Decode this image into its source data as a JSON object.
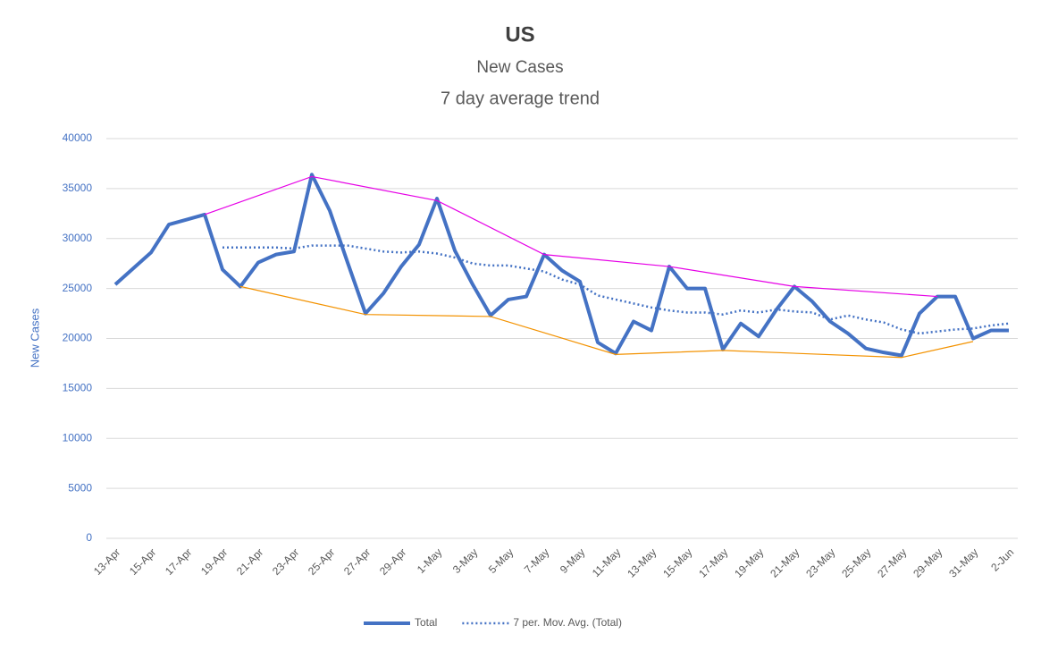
{
  "chart_data": {
    "type": "line",
    "title": "US",
    "subtitle": "New Cases",
    "subtitle2": "7 day average trend",
    "y_label": "New Cases",
    "categories": [
      "13-Apr",
      null,
      "15-Apr",
      null,
      "17-Apr",
      null,
      "19-Apr",
      null,
      "21-Apr",
      null,
      "23-Apr",
      null,
      "25-Apr",
      null,
      "27-Apr",
      null,
      "29-Apr",
      null,
      "1-May",
      null,
      "3-May",
      null,
      "5-May",
      null,
      "7-May",
      null,
      "9-May",
      null,
      "11-May",
      null,
      "13-May",
      null,
      "15-May",
      null,
      "17-May",
      null,
      "19-May",
      null,
      "21-May",
      null,
      "23-May",
      null,
      "25-May",
      null,
      "27-May",
      null,
      "29-May",
      null,
      "31-May",
      null,
      "2-Jun"
    ],
    "series": [
      {
        "name": "Total",
        "color": "#4472c4",
        "style": "solid",
        "values": [
          25400,
          27000,
          28600,
          31400,
          31900,
          32400,
          26900,
          25200,
          27600,
          28400,
          28700,
          36400,
          32800,
          27600,
          22500,
          24500,
          27200,
          29400,
          34000,
          28800,
          25400,
          22300,
          23900,
          24200,
          28400,
          26800,
          25700,
          19600,
          18500,
          21700,
          20800,
          27200,
          25000,
          25000,
          18900,
          21500,
          20200,
          22900,
          25200,
          23700,
          21700,
          20500,
          19000,
          18600,
          18300,
          22500,
          24200,
          24200,
          20000,
          20800,
          20800
        ]
      },
      {
        "name": "7 per. Mov. Avg. (Total)",
        "color": "#4472c4",
        "style": "dotted",
        "values": [
          null,
          null,
          null,
          null,
          null,
          null,
          29100,
          29100,
          29100,
          29100,
          29000,
          29300,
          29300,
          29300,
          29000,
          28700,
          28600,
          28700,
          28500,
          28100,
          27500,
          27300,
          27300,
          27000,
          26700,
          25900,
          25400,
          24300,
          23900,
          23500,
          23100,
          22800,
          22600,
          22600,
          22400,
          22800,
          22600,
          22900,
          22700,
          22600,
          21900,
          22300,
          21900,
          21600,
          20900,
          20500,
          20700,
          20900,
          21000,
          21300,
          21500
        ]
      },
      {
        "color": "#e600e6",
        "style": "trend",
        "values": [
          null,
          null,
          null,
          null,
          null,
          32400,
          null,
          null,
          null,
          null,
          null,
          36200,
          null,
          null,
          null,
          null,
          null,
          null,
          33800,
          null,
          null,
          null,
          null,
          null,
          28400,
          null,
          null,
          null,
          null,
          null,
          null,
          27200,
          null,
          null,
          null,
          null,
          null,
          null,
          25200,
          null,
          null,
          null,
          null,
          null,
          null,
          null,
          24200,
          null,
          null,
          null,
          null
        ]
      },
      {
        "color": "#f39200",
        "style": "trend",
        "values": [
          null,
          null,
          null,
          null,
          null,
          null,
          null,
          25200,
          null,
          null,
          null,
          null,
          null,
          null,
          22400,
          null,
          null,
          null,
          null,
          null,
          null,
          22200,
          null,
          null,
          null,
          null,
          null,
          null,
          18400,
          null,
          null,
          null,
          null,
          null,
          18800,
          null,
          null,
          null,
          null,
          null,
          null,
          null,
          null,
          null,
          18100,
          null,
          null,
          null,
          19700,
          null,
          null
        ]
      }
    ],
    "ylim": [
      0,
      40000
    ],
    "yticks": [
      0,
      5000,
      10000,
      15000,
      20000,
      25000,
      30000,
      35000,
      40000
    ],
    "grid": true,
    "legend": "bottom"
  }
}
